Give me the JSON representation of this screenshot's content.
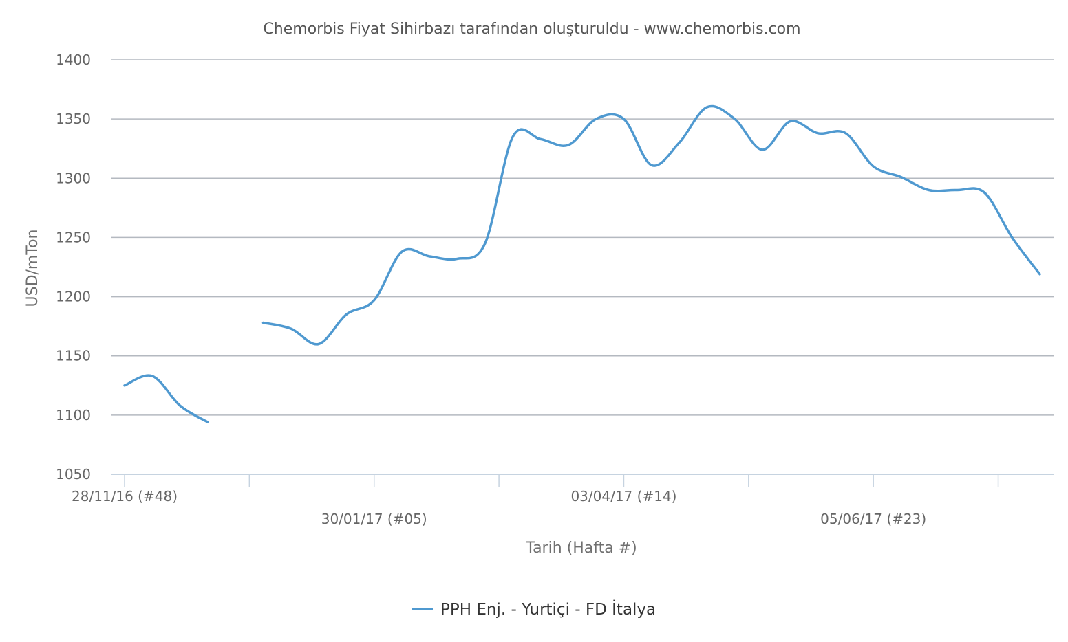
{
  "chart_data": {
    "type": "line",
    "subtitle": "Chemorbis Fiyat Sihirbazı tarafından oluşturuldu - www.chemorbis.com",
    "xlabel": "Tarih (Hafta #)",
    "ylabel": "USD/mTon",
    "ylim": [
      1050,
      1400
    ],
    "yticks": [
      1050,
      1100,
      1150,
      1200,
      1250,
      1300,
      1350,
      1400
    ],
    "grid": true,
    "legend_position": "bottom-center",
    "x_axis": {
      "type": "weekly-dates",
      "start": "2016-11-28",
      "end": "2017-07-17",
      "tick_labels": [
        {
          "x": "2016-11-28",
          "label": "28/11/16 (#48)"
        },
        {
          "x": "2017-01-30",
          "label": "30/01/17 (#05)"
        },
        {
          "x": "2017-04-03",
          "label": "03/04/17 (#14)"
        },
        {
          "x": "2017-06-05",
          "label": "05/06/17 (#23)"
        }
      ]
    },
    "series": [
      {
        "name": "PPH Enj. - Yurtiçi - FD İtalya",
        "color": "#4f99d0",
        "points": [
          {
            "x": "2016-11-28",
            "y": 1125
          },
          {
            "x": "2016-12-05",
            "y": 1133
          },
          {
            "x": "2016-12-12",
            "y": 1108
          },
          {
            "x": "2016-12-19",
            "y": 1094
          },
          {
            "x": "2016-12-26",
            "y": null
          },
          {
            "x": "2017-01-02",
            "y": 1178
          },
          {
            "x": "2017-01-09",
            "y": 1173
          },
          {
            "x": "2017-01-16",
            "y": 1160
          },
          {
            "x": "2017-01-23",
            "y": 1185
          },
          {
            "x": "2017-01-30",
            "y": 1197
          },
          {
            "x": "2017-02-06",
            "y": 1238
          },
          {
            "x": "2017-02-13",
            "y": 1234
          },
          {
            "x": "2017-02-20",
            "y": 1232
          },
          {
            "x": "2017-02-27",
            "y": 1245
          },
          {
            "x": "2017-03-06",
            "y": 1335
          },
          {
            "x": "2017-03-13",
            "y": 1333
          },
          {
            "x": "2017-03-20",
            "y": 1328
          },
          {
            "x": "2017-03-27",
            "y": 1350
          },
          {
            "x": "2017-04-03",
            "y": 1350
          },
          {
            "x": "2017-04-10",
            "y": 1311
          },
          {
            "x": "2017-04-17",
            "y": 1330
          },
          {
            "x": "2017-04-24",
            "y": 1360
          },
          {
            "x": "2017-05-01",
            "y": 1350
          },
          {
            "x": "2017-05-08",
            "y": 1324
          },
          {
            "x": "2017-05-15",
            "y": 1348
          },
          {
            "x": "2017-05-22",
            "y": 1338
          },
          {
            "x": "2017-05-29",
            "y": 1338
          },
          {
            "x": "2017-06-05",
            "y": 1310
          },
          {
            "x": "2017-06-12",
            "y": 1301
          },
          {
            "x": "2017-06-19",
            "y": 1290
          },
          {
            "x": "2017-06-26",
            "y": 1290
          },
          {
            "x": "2017-07-03",
            "y": 1288
          },
          {
            "x": "2017-07-10",
            "y": 1250
          },
          {
            "x": "2017-07-17",
            "y": 1219
          }
        ]
      }
    ],
    "colors": {
      "grid": "#b4b9c0",
      "axis": "#c6d3e0",
      "line": "#4f99d0"
    }
  }
}
